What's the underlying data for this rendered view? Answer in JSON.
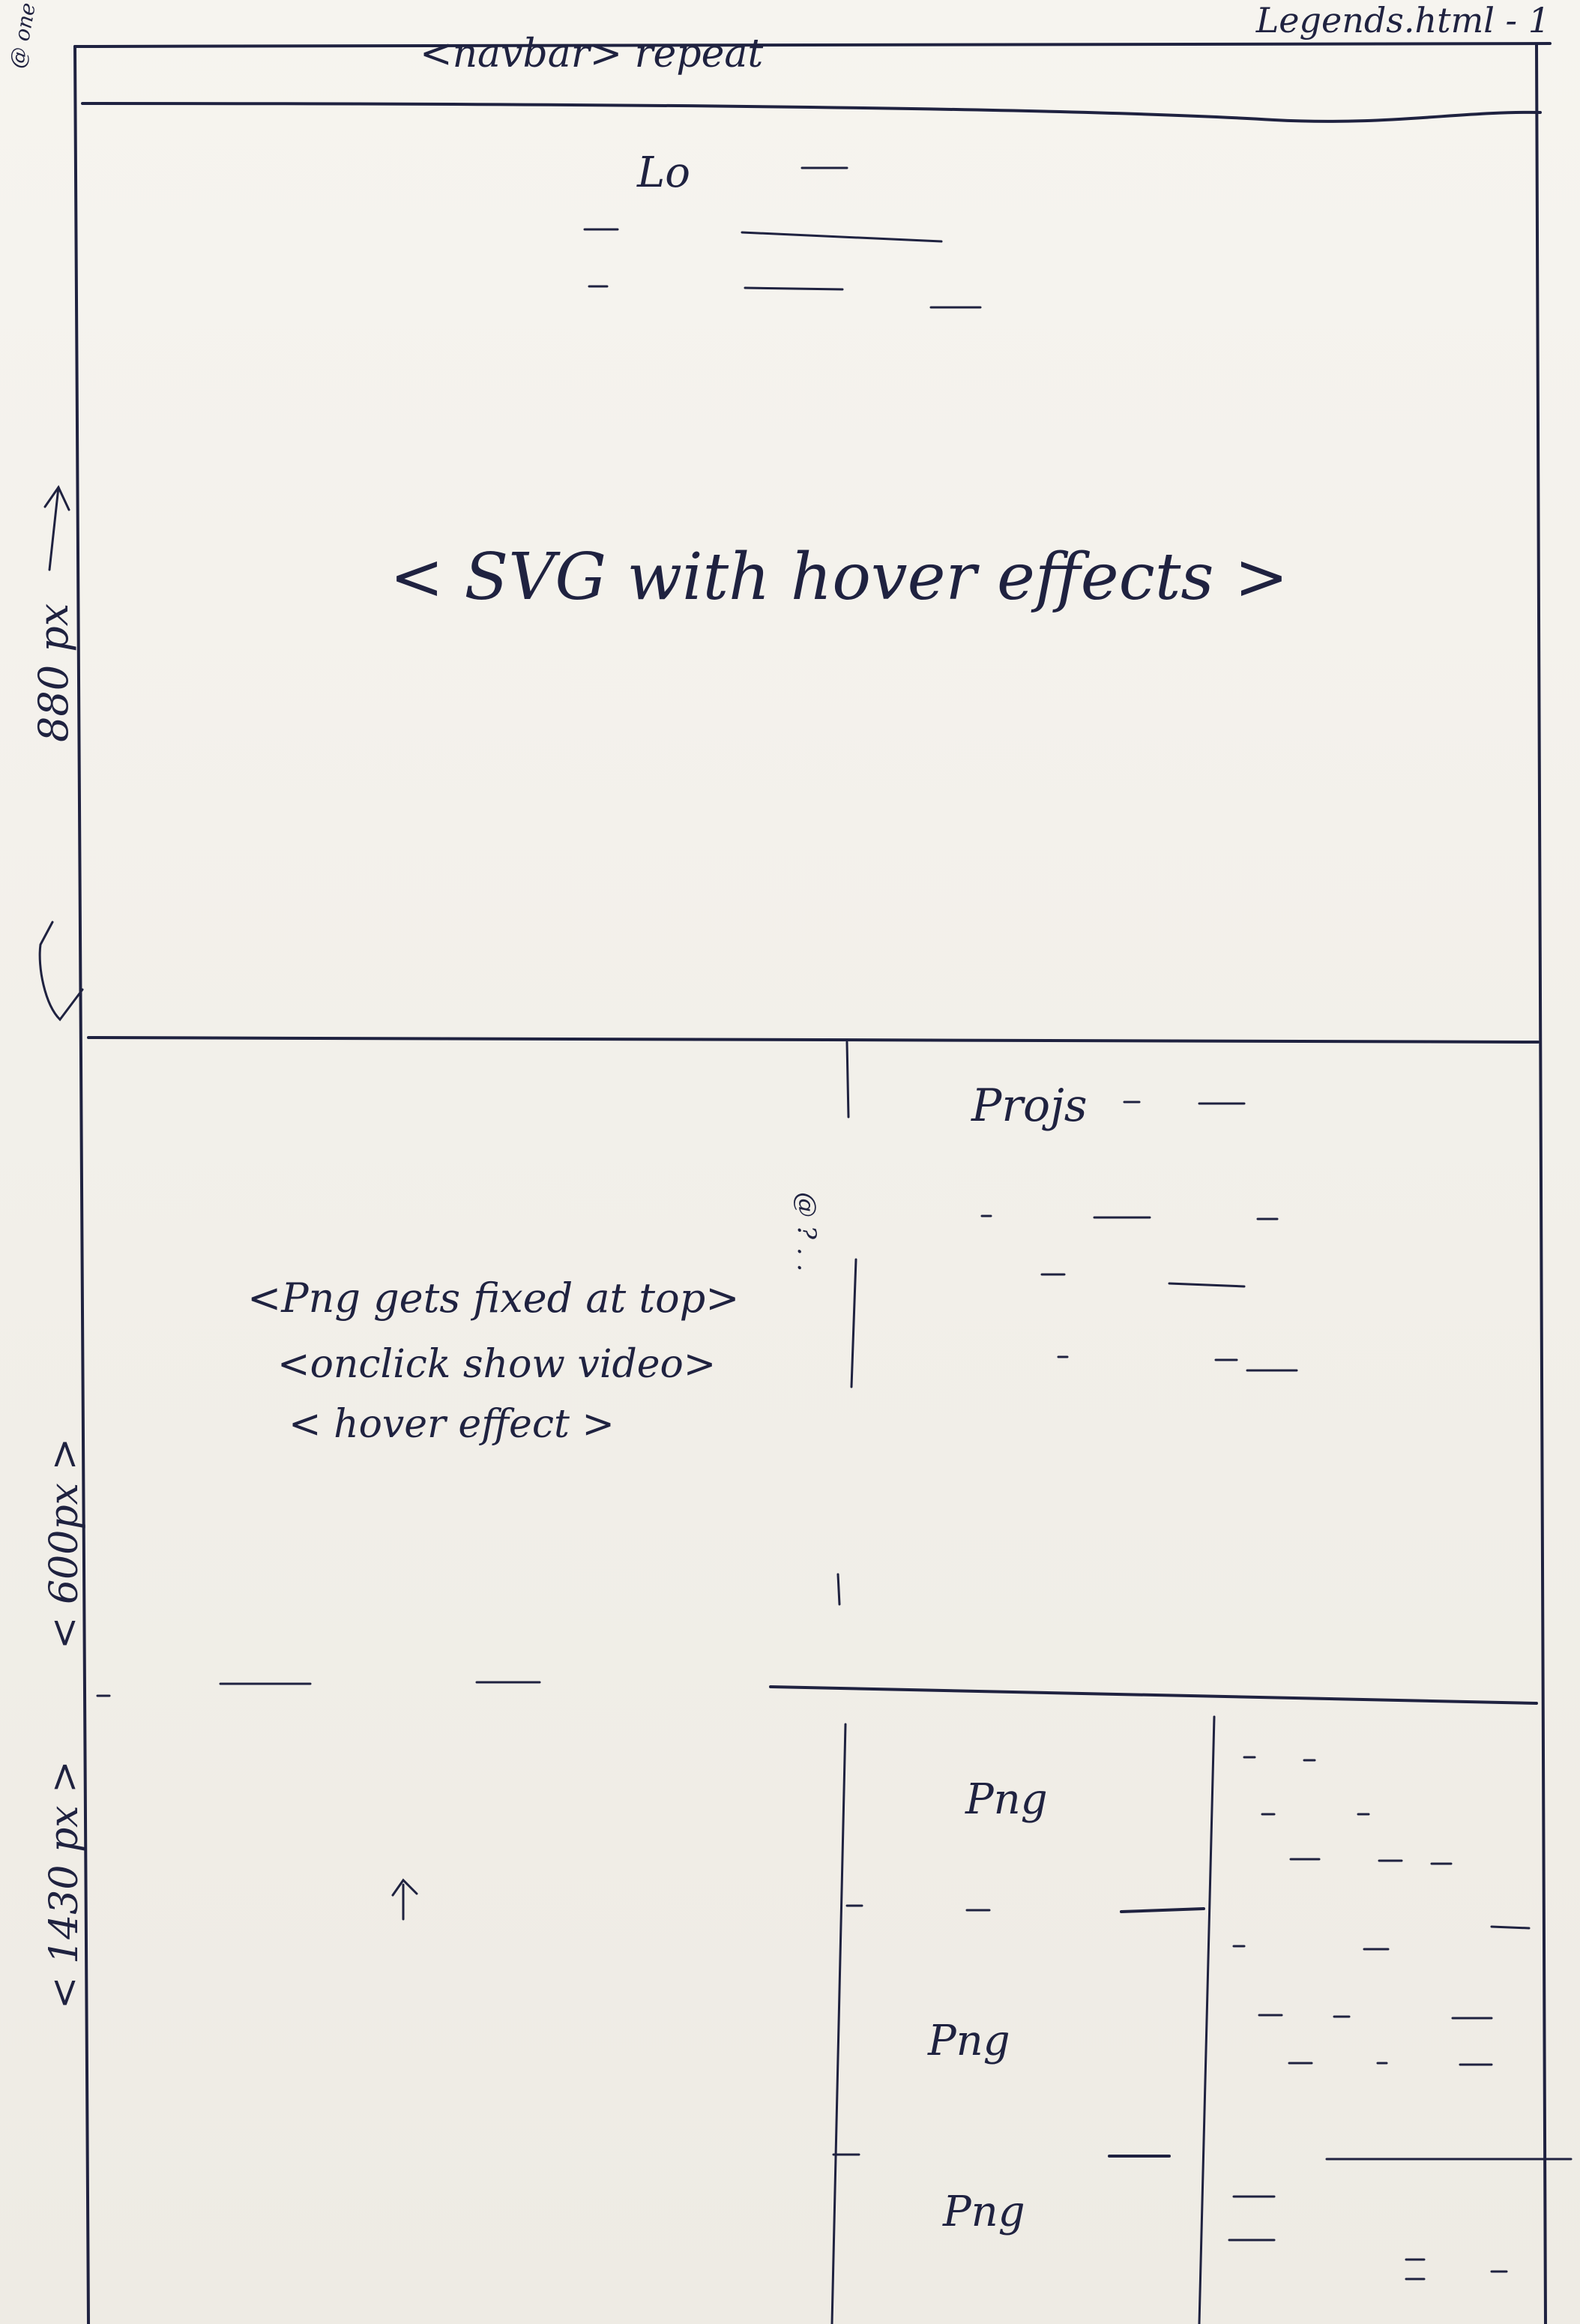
{
  "legend": "Legends.html - 1",
  "navbar_label": "<navbar> repeat",
  "corner_note": "@ one",
  "hero": {
    "logo_text": "Lo",
    "center_label": "< SVG with hover effects >",
    "height_label": "880 px"
  },
  "projects": {
    "title": "Projs",
    "note_line1": "<Png gets fixed at top>",
    "note_line2": "<onclick show video>",
    "note_line3": "< hover effect >",
    "side_label": "@ ? . .",
    "height_label": "< 600px >"
  },
  "gallery": {
    "height_label": "< 1430 px >",
    "arrow": "↑",
    "items": [
      {
        "label": "Png"
      },
      {
        "label": "Png"
      },
      {
        "label": "Png"
      }
    ]
  }
}
